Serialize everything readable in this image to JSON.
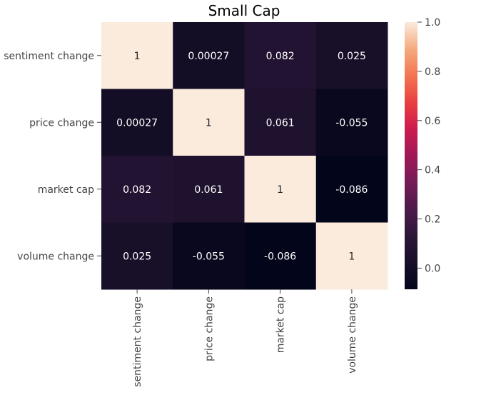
{
  "chart_data": {
    "type": "heatmap",
    "title": "Small Cap",
    "xlabel": "",
    "ylabel": "",
    "rows": [
      "sentiment change",
      "price change",
      "market cap",
      "volume change"
    ],
    "columns": [
      "sentiment change",
      "price change",
      "market cap",
      "volume change"
    ],
    "values": [
      [
        1,
        0.00027,
        0.082,
        0.025
      ],
      [
        0.00027,
        1,
        0.061,
        -0.055
      ],
      [
        0.082,
        0.061,
        1,
        -0.086
      ],
      [
        0.025,
        -0.055,
        -0.086,
        1
      ]
    ],
    "annotations": [
      [
        "1",
        "0.00027",
        "0.082",
        "0.025"
      ],
      [
        "0.00027",
        "1",
        "0.061",
        "-0.055"
      ],
      [
        "0.082",
        "0.061",
        "1",
        "-0.086"
      ],
      [
        "0.025",
        "-0.055",
        "-0.086",
        "1"
      ]
    ],
    "colormap": "rocket",
    "colorbar": {
      "vmin": -0.086,
      "vmax": 1,
      "ticks": [
        0.0,
        0.2,
        0.4,
        0.6,
        0.8,
        1.0
      ],
      "tick_labels": [
        "0.0",
        "0.2",
        "0.4",
        "0.6",
        "0.8",
        "1.0"
      ]
    },
    "legend": "none",
    "grid": false
  }
}
